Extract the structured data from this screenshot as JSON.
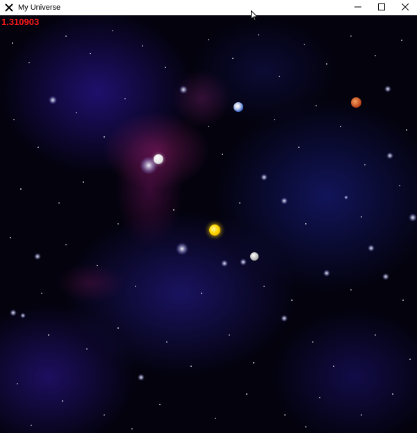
{
  "window": {
    "title": "My Universe",
    "app_icon": "x-logo-icon",
    "controls": {
      "minimize": "minimize-icon",
      "maximize": "maximize-icon",
      "close": "close-icon"
    }
  },
  "scene": {
    "fps_value": "1.310903",
    "fps_color": "#ff1a1a",
    "background_color": "#03020d",
    "nebula_colors": [
      "#2a1a8c",
      "#8c1e6e"
    ],
    "sun_color": "#ffcc00",
    "earth_color": "#3b66c4",
    "mars_color": "#c44a1e"
  }
}
